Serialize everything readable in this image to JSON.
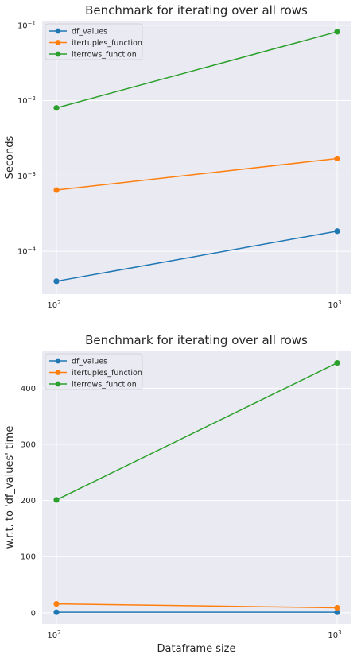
{
  "chart_data": [
    {
      "type": "line",
      "title": "Benchmark for iterating over all rows",
      "xlabel": "",
      "ylabel": "Seconds",
      "xscale": "log",
      "yscale": "log",
      "x": [
        100,
        1000
      ],
      "xticks": [
        100,
        1000
      ],
      "xtick_labels": [
        {
          "base": "10",
          "exp": "2"
        },
        {
          "base": "10",
          "exp": "3"
        }
      ],
      "ylim": [
        2.7e-05,
        0.115
      ],
      "yticks": [
        0.0001,
        0.001,
        0.01,
        0.1
      ],
      "ytick_labels": [
        {
          "base": "10",
          "exp": "−4"
        },
        {
          "base": "10",
          "exp": "−3"
        },
        {
          "base": "10",
          "exp": "−2"
        },
        {
          "base": "10",
          "exp": "−1"
        }
      ],
      "grid": true,
      "legend": "top-left",
      "series": [
        {
          "name": "df_values",
          "color": "#1f77b4",
          "values": [
            4e-05,
            0.000185
          ]
        },
        {
          "name": "itertuples_function",
          "color": "#ff7f0e",
          "values": [
            0.00065,
            0.0017
          ]
        },
        {
          "name": "iterrows_function",
          "color": "#2ca02c",
          "values": [
            0.008,
            0.082
          ]
        }
      ]
    },
    {
      "type": "line",
      "title": "Benchmark for iterating over all rows",
      "xlabel": "Dataframe size",
      "ylabel": "w.r.t. to 'df_values' time",
      "xscale": "log",
      "yscale": "linear",
      "x": [
        100,
        1000
      ],
      "xticks": [
        100,
        1000
      ],
      "xtick_labels": [
        {
          "base": "10",
          "exp": "2"
        },
        {
          "base": "10",
          "exp": "3"
        }
      ],
      "ylim": [
        -20,
        467
      ],
      "yticks": [
        0,
        100,
        200,
        300,
        400
      ],
      "ytick_labels": [
        "0",
        "100",
        "200",
        "300",
        "400"
      ],
      "grid": true,
      "legend": "top-left",
      "series": [
        {
          "name": "df_values",
          "color": "#1f77b4",
          "values": [
            1,
            1
          ]
        },
        {
          "name": "itertuples_function",
          "color": "#ff7f0e",
          "values": [
            16,
            9
          ]
        },
        {
          "name": "iterrows_function",
          "color": "#2ca02c",
          "values": [
            201,
            445
          ]
        }
      ]
    }
  ]
}
